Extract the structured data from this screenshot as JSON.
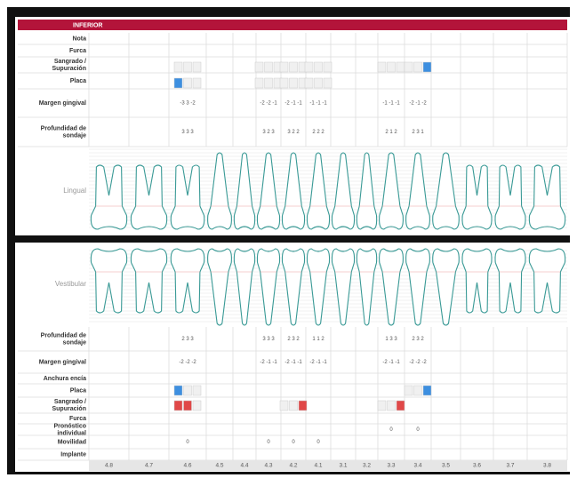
{
  "header": {
    "title": "INFERIOR"
  },
  "lingual": {
    "label": "Lingual",
    "rows": [
      {
        "label": "Nota",
        "cells": [
          null,
          null,
          null,
          null,
          null,
          null,
          null,
          null,
          null,
          null,
          null,
          null,
          null,
          null,
          null,
          null
        ]
      },
      {
        "label": "Furca",
        "cells": [
          null,
          null,
          null,
          null,
          null,
          null,
          null,
          null,
          null,
          null,
          null,
          null,
          null,
          null,
          null,
          null
        ]
      },
      {
        "label": "Sangrado / Supuración",
        "cells": [
          null,
          null,
          null,
          null,
          null,
          null,
          null,
          null,
          null,
          null,
          null,
          null,
          null,
          null,
          null,
          null
        ]
      },
      {
        "label": "Placa",
        "cells": [
          null,
          null,
          null,
          null,
          null,
          null,
          null,
          null,
          null,
          null,
          null,
          null,
          null,
          null,
          null,
          null
        ]
      },
      {
        "label": "Margen gingival",
        "cells": [
          null,
          null,
          "-3 3 -2",
          null,
          null,
          "-2 -2 -1",
          "-2 -1 -1",
          "-1 -1 -1",
          null,
          null,
          "-1 -1 -1",
          "-2 -1 -2",
          null,
          null,
          null,
          null
        ]
      },
      {
        "label": "Profundidad de sondaje",
        "cells": [
          null,
          null,
          "3 3 3",
          null,
          null,
          "3 2 3",
          "3 2 2",
          "2 2 2",
          null,
          null,
          "2 1 2",
          "2 3 1",
          null,
          null,
          null,
          null
        ]
      }
    ]
  },
  "vestibular": {
    "label": "Vestibular",
    "rows": [
      {
        "label": "Profundidad de sondaje",
        "cells": [
          null,
          null,
          "2 3 3",
          null,
          null,
          "3 3 3",
          "2 3 2",
          "1 1 2",
          null,
          null,
          "1 3 3",
          "2 3 2",
          null,
          null,
          null,
          null
        ]
      },
      {
        "label": "Margen gingival",
        "cells": [
          null,
          null,
          "-2 -2 -2",
          null,
          null,
          "-2 -1 -1",
          "-2 -1 -1",
          "-2 -1 -1",
          null,
          null,
          "-2 -1 -1",
          "-2 -2 -2",
          null,
          null,
          null,
          null
        ]
      },
      {
        "label": "Anchura encía",
        "cells": [
          null,
          null,
          null,
          null,
          null,
          null,
          null,
          null,
          null,
          null,
          null,
          null,
          null,
          null,
          null,
          null
        ]
      },
      {
        "label": "Placa",
        "cells": [
          null,
          null,
          null,
          null,
          null,
          null,
          null,
          null,
          null,
          null,
          null,
          null,
          null,
          null,
          null,
          null
        ]
      },
      {
        "label": "Sangrado / Supuración",
        "cells": [
          null,
          null,
          null,
          null,
          null,
          null,
          null,
          null,
          null,
          null,
          null,
          null,
          null,
          null,
          null,
          null
        ]
      },
      {
        "label": "Furca",
        "cells": [
          null,
          null,
          null,
          null,
          null,
          null,
          null,
          null,
          null,
          null,
          null,
          null,
          null,
          null,
          null,
          null
        ]
      },
      {
        "label": "Pronóstico individual",
        "cells": [
          null,
          null,
          null,
          null,
          null,
          null,
          null,
          null,
          null,
          null,
          "0",
          "0",
          null,
          null,
          null,
          null
        ]
      },
      {
        "label": "Movilidad",
        "cells": [
          null,
          null,
          "0",
          null,
          null,
          "0",
          "0",
          "0",
          null,
          null,
          null,
          null,
          null,
          null,
          null,
          null
        ]
      },
      {
        "label": "Implante",
        "cells": [
          null,
          null,
          null,
          null,
          null,
          null,
          null,
          null,
          null,
          null,
          null,
          null,
          null,
          null,
          null,
          null
        ]
      }
    ]
  },
  "teeth": [
    "4.8",
    "4.7",
    "4.6",
    "4.5",
    "4.4",
    "4.3",
    "4.2",
    "4.1",
    "3.1",
    "3.2",
    "3.3",
    "3.4",
    "3.5",
    "3.6",
    "3.7",
    "3.8"
  ]
}
